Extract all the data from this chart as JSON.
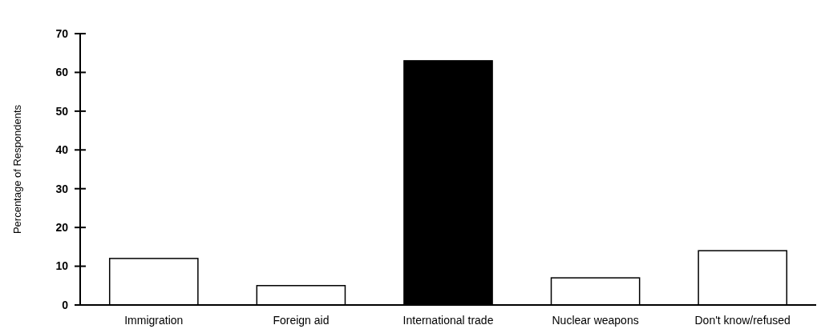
{
  "chart_data": {
    "type": "bar",
    "ylabel": "Percentage of Respondents",
    "categories": [
      "Immigration",
      "Foreign aid",
      "International trade",
      "Nuclear weapons",
      "Don't know/refused"
    ],
    "values": [
      12,
      5,
      63,
      7,
      14
    ],
    "colors": [
      "#ffffff",
      "#ffffff",
      "#000000",
      "#ffffff",
      "#ffffff"
    ],
    "ylim": [
      0,
      70
    ],
    "yticks": [
      0,
      10,
      20,
      30,
      40,
      50,
      60,
      70
    ]
  }
}
